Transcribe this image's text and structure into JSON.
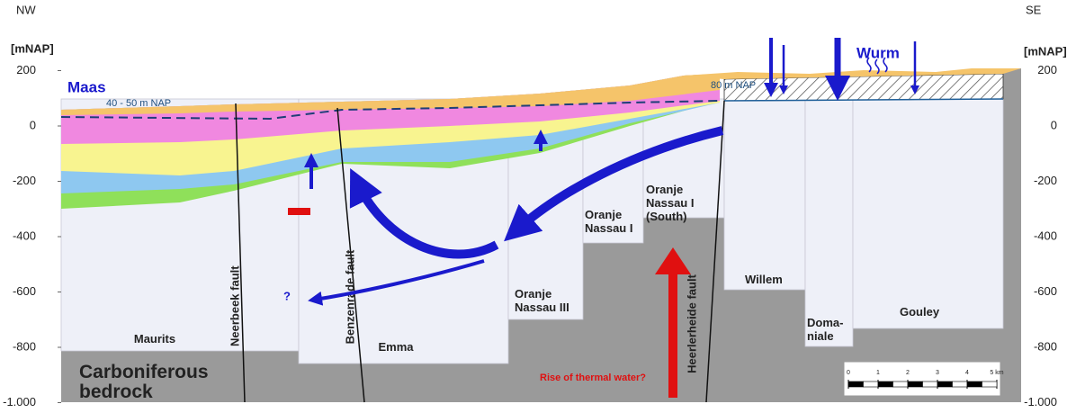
{
  "header": {
    "left": "NW",
    "right": "SE"
  },
  "axis": {
    "unit": "[mNAP]",
    "ticks": [
      200,
      0,
      -200,
      -400,
      -600,
      -800,
      {
        "value": -1000,
        "label": "-1.000"
      }
    ]
  },
  "labels": {
    "maas": "Maas",
    "level_left": "40 - 50 m NAP",
    "level_right": "80 m NAP",
    "wurm": "Wurm",
    "question": "?",
    "bedrock": [
      "Carboniferous",
      "bedrock"
    ],
    "thermal": "Rise of thermal water?"
  },
  "faults": [
    "Neerbeek fault",
    "Benzenrade fault",
    "Heerlerheide fault"
  ],
  "mines": [
    {
      "lines": [
        "Maurits"
      ]
    },
    {
      "lines": [
        "Emma"
      ]
    },
    {
      "lines": [
        "Oranje",
        "Nassau III"
      ]
    },
    {
      "lines": [
        "Oranje",
        "Nassau I"
      ]
    },
    {
      "lines": [
        "Oranje",
        "Nassau I",
        "(South)"
      ]
    },
    {
      "lines": [
        "Willem"
      ]
    },
    {
      "lines": [
        "Doma-",
        "niale"
      ]
    },
    {
      "lines": [
        "Gouley"
      ]
    }
  ],
  "scale": {
    "ticks": [
      0,
      1,
      2,
      3,
      4,
      {
        "value": 5,
        "label": "5 km"
      }
    ]
  }
}
